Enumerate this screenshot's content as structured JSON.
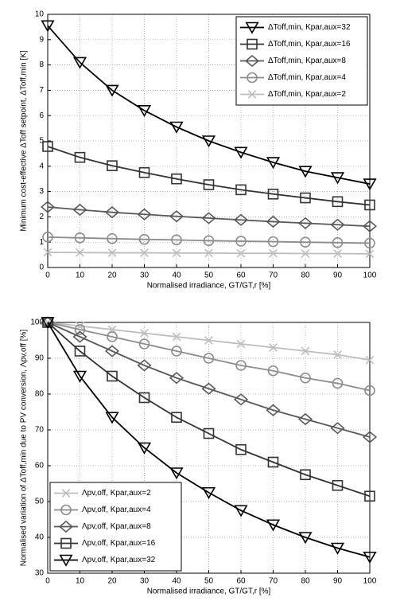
{
  "chart_data": [
    {
      "type": "line",
      "ylabel": "Minimum cost-effective ΔToff setpoint, ΔToff,min [K]",
      "xlabel": "Normalised irradiance, GT/GT,r [%]",
      "x": [
        0,
        10,
        20,
        30,
        40,
        50,
        60,
        70,
        80,
        90,
        100
      ],
      "xlim": [
        0,
        100
      ],
      "xticks": [
        0,
        10,
        20,
        30,
        40,
        50,
        60,
        70,
        80,
        90,
        100
      ],
      "ylim": [
        0,
        10
      ],
      "yticks": [
        0,
        1,
        2,
        3,
        4,
        5,
        6,
        7,
        8,
        9,
        10
      ],
      "grid": true,
      "legend": "upper right",
      "series": [
        {
          "name": "ΔToff,min, Kpar,aux=32",
          "color": "#000000",
          "marker": "triangle-down",
          "values": [
            9.55,
            8.1,
            7.0,
            6.2,
            5.55,
            5.0,
            4.55,
            4.15,
            3.8,
            3.55,
            3.3
          ]
        },
        {
          "name": "ΔToff,min, Kpar,aux=16",
          "color": "#333333",
          "marker": "square",
          "values": [
            4.78,
            4.35,
            4.02,
            3.75,
            3.5,
            3.27,
            3.07,
            2.9,
            2.75,
            2.6,
            2.47
          ]
        },
        {
          "name": "ΔToff,min, Kpar,aux=8",
          "color": "#595959",
          "marker": "diamond",
          "values": [
            2.39,
            2.28,
            2.18,
            2.1,
            2.02,
            1.95,
            1.88,
            1.81,
            1.75,
            1.69,
            1.63
          ]
        },
        {
          "name": "ΔToff,min, Kpar,aux=4",
          "color": "#8c8c8c",
          "marker": "circle",
          "values": [
            1.2,
            1.17,
            1.14,
            1.11,
            1.09,
            1.06,
            1.04,
            1.02,
            1.0,
            0.98,
            0.96
          ]
        },
        {
          "name": "ΔToff,min, Kpar,aux=2",
          "color": "#bdbdbd",
          "marker": "x",
          "values": [
            0.6,
            0.59,
            0.58,
            0.58,
            0.57,
            0.57,
            0.56,
            0.56,
            0.55,
            0.55,
            0.54
          ]
        }
      ]
    },
    {
      "type": "line",
      "ylabel": "Normalised variation of ΔToff,min due to PV conversion, Λpv,off [%]",
      "xlabel": "Normalised irradiance, GT/GT,r [%]",
      "x": [
        0,
        10,
        20,
        30,
        40,
        50,
        60,
        70,
        80,
        90,
        100
      ],
      "xlim": [
        0,
        100
      ],
      "xticks": [
        0,
        10,
        20,
        30,
        40,
        50,
        60,
        70,
        80,
        90,
        100
      ],
      "ylim": [
        30,
        100
      ],
      "yticks": [
        30,
        40,
        50,
        60,
        70,
        80,
        90,
        100
      ],
      "grid": true,
      "legend": "lower left",
      "series": [
        {
          "name": "Λpv,off, Kpar,aux=2",
          "color": "#bdbdbd",
          "marker": "x",
          "values": [
            100,
            99,
            98,
            97,
            96,
            95,
            94,
            93,
            92,
            91,
            89.5
          ]
        },
        {
          "name": "Λpv,off, Kpar,aux=4",
          "color": "#8c8c8c",
          "marker": "circle",
          "values": [
            100,
            98,
            96,
            94,
            92,
            90,
            88,
            86.5,
            84.5,
            83,
            81
          ]
        },
        {
          "name": "Λpv,off, Kpar,aux=8",
          "color": "#595959",
          "marker": "diamond",
          "values": [
            100,
            96,
            92,
            88,
            84.5,
            81.5,
            78.5,
            75.5,
            73,
            70.5,
            68
          ]
        },
        {
          "name": "Λpv,off, Kpar,aux=16",
          "color": "#333333",
          "marker": "square",
          "values": [
            100,
            92,
            85,
            79,
            73.5,
            69,
            64.5,
            61,
            57.5,
            54.5,
            51.5
          ]
        },
        {
          "name": "Λpv,off, Kpar,aux=32",
          "color": "#000000",
          "marker": "triangle-down",
          "values": [
            100,
            85,
            73.5,
            65,
            58,
            52.5,
            47.5,
            43.5,
            40,
            37,
            34.5
          ]
        }
      ]
    }
  ]
}
